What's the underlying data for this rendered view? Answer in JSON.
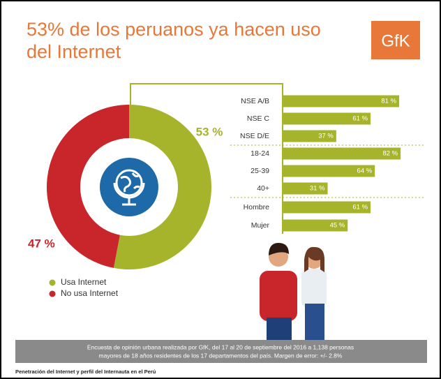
{
  "header": {
    "title": [
      "53% de los peruanos ya hacen uso",
      "del Internet"
    ],
    "logo": "GfK"
  },
  "chart_data": [
    {
      "type": "pie",
      "categories": [
        "Usa Internet",
        "No usa Internet"
      ],
      "values": [
        53,
        47
      ],
      "value_labels": [
        "53 %",
        "47 %"
      ],
      "colors": [
        "#a6b42b",
        "#c8262b"
      ],
      "donut": true
    },
    {
      "type": "bar",
      "orientation": "horizontal",
      "categories": [
        "NSE A/B",
        "NSE C",
        "NSE D/E",
        "18-24",
        "25-39",
        "40+",
        "Hombre",
        "Mujer"
      ],
      "values": [
        81,
        61,
        37,
        82,
        64,
        31,
        61,
        45
      ],
      "value_labels": [
        "81 %",
        "61 %",
        "37 %",
        "82 %",
        "64 %",
        "31 %",
        "61 %",
        "45 %"
      ],
      "color": "#a6b42b"
    }
  ],
  "footer": {
    "note": [
      "Encuesta de opinión urbana realizada por GfK, del 17 al 20 de septiembre del 2016 a 1,138 personas",
      "mayores de 18 años residentes de los 17 departamentos del país. Margen de error: +/- 2.8%"
    ]
  },
  "caption": "Penetración del Internet y perfil del Internauta en el Perú"
}
